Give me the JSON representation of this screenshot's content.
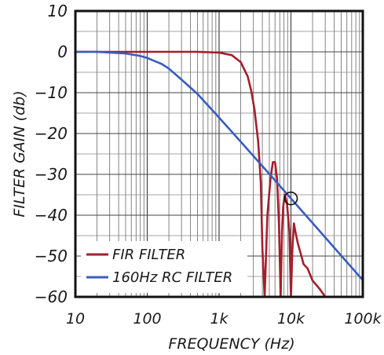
{
  "chart_data": {
    "type": "line",
    "xlabel": "FREQUENCY (Hz)",
    "ylabel": "FILTER GAIN (db)",
    "x_scale": "log",
    "xlim": [
      10,
      100000
    ],
    "ylim": [
      -60,
      10
    ],
    "grid": true,
    "legend_position": "bottom-left",
    "x_ticks": [
      "10",
      "100",
      "1k",
      "10k",
      "100k"
    ],
    "y_ticks": [
      "10",
      "0",
      "−10",
      "−20",
      "−30",
      "−40",
      "−50",
      "−60"
    ],
    "series": [
      {
        "name": "FIR FILTER",
        "color": "#a31f2c",
        "x": [
          10,
          100,
          500,
          1000,
          1500,
          2000,
          2500,
          2800,
          3100,
          3500,
          3800,
          4000,
          4300,
          4700,
          5200,
          5600,
          6000,
          6400,
          6800,
          7200,
          7500,
          7800,
          8200,
          8800,
          9500,
          10000,
          10500,
          11000,
          11500,
          12500,
          13500,
          15000,
          17000,
          20000,
          25000,
          30000
        ],
        "y": [
          0,
          0,
          0,
          -0.2,
          -0.8,
          -2.5,
          -6,
          -9.5,
          -14,
          -22,
          -32,
          -48,
          -60,
          -40,
          -31,
          -27,
          -27,
          -31,
          -42,
          -60,
          -44,
          -38,
          -35,
          -37,
          -44,
          -60,
          -48,
          -42,
          -44,
          -47,
          -49,
          -52,
          -53,
          -56,
          -58,
          -60
        ]
      },
      {
        "name": "160Hz RC FILTER",
        "color": "#3a5cc0",
        "x": [
          10,
          20,
          50,
          80,
          100,
          160,
          200,
          300,
          500,
          1000,
          2000,
          5000,
          10000,
          20000,
          50000,
          100000
        ],
        "y": [
          0,
          0,
          -0.4,
          -1,
          -1.5,
          -3,
          -4.1,
          -6.8,
          -10.3,
          -16.1,
          -22,
          -29.9,
          -35.9,
          -41.9,
          -49.9,
          -55.9
        ]
      }
    ],
    "annotations": [
      {
        "type": "circle",
        "x": 10000,
        "y": -35.9
      }
    ]
  }
}
